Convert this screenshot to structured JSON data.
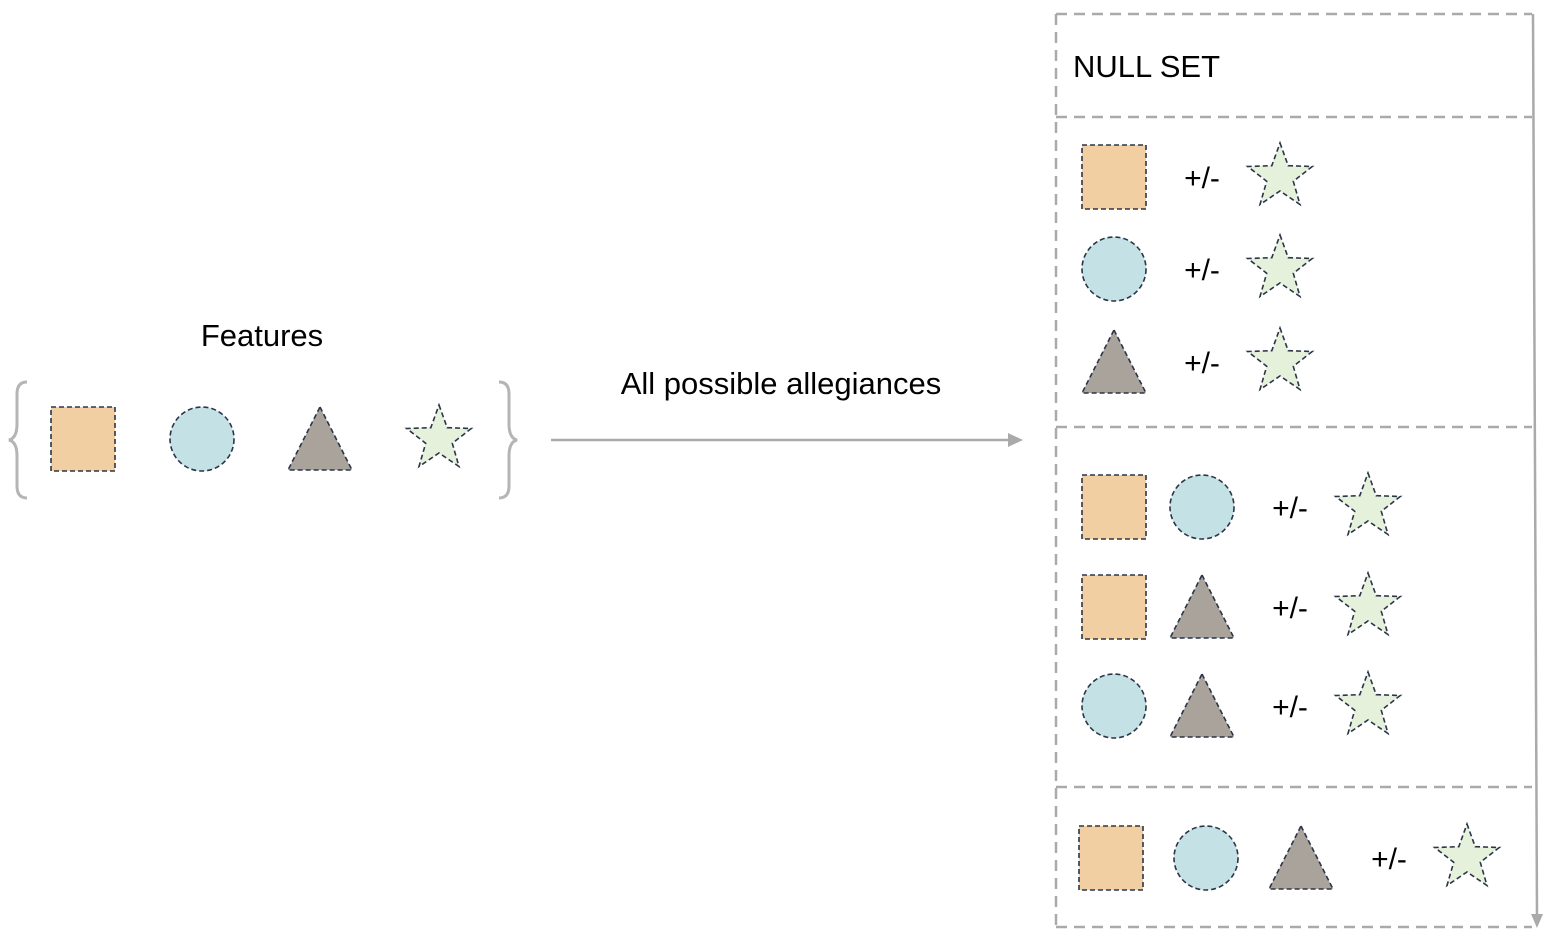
{
  "features_label": "Features",
  "arrow_label": "All possible allegiances",
  "null_set_label": "NULL SET",
  "plus_minus": "+/-",
  "colors": {
    "square": "#f1cfa3",
    "circle": "#c4e2e6",
    "triangle": "#a9a39b",
    "star": "#e6f1dc",
    "shape_stroke": "#2b3548",
    "connector": "#aaaaaa",
    "brace": "#b5b5b5"
  },
  "shape_icons": {
    "square": "square-icon",
    "circle": "circle-icon",
    "triangle": "triangle-icon",
    "star": "star-icon"
  },
  "features": [
    "square",
    "circle",
    "triangle",
    "star"
  ],
  "groups": [
    {
      "size": 0,
      "rows": []
    },
    {
      "size": 1,
      "rows": [
        [
          "square"
        ],
        [
          "circle"
        ],
        [
          "triangle"
        ]
      ]
    },
    {
      "size": 2,
      "rows": [
        [
          "square",
          "circle"
        ],
        [
          "square",
          "triangle"
        ],
        [
          "circle",
          "triangle"
        ]
      ]
    },
    {
      "size": 3,
      "rows": [
        [
          "square",
          "circle",
          "triangle"
        ]
      ]
    }
  ]
}
